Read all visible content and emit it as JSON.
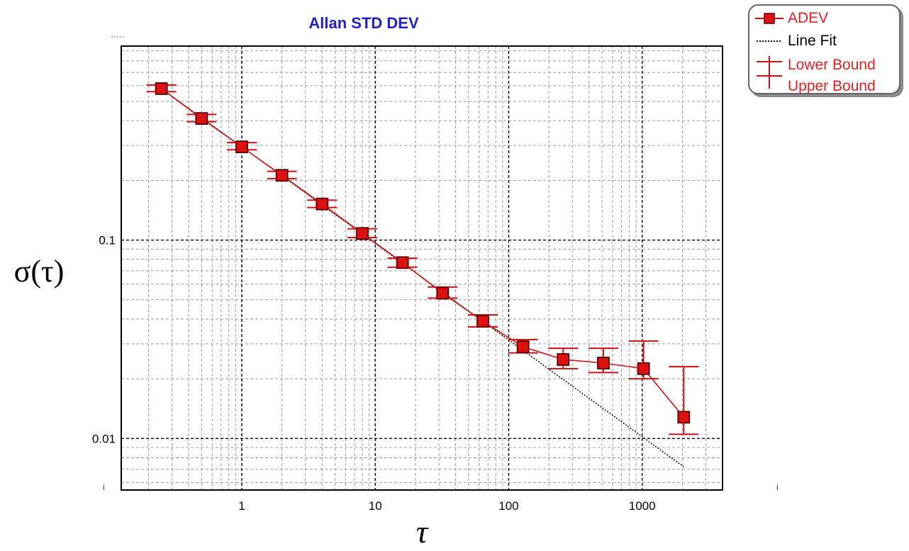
{
  "chart_data": {
    "type": "scatter",
    "title": "Allan STD DEV",
    "xlabel": "τ",
    "ylabel": "σ(τ)",
    "x_scale": "log",
    "y_scale": "log",
    "xlim": [
      0.125,
      4000
    ],
    "ylim": [
      0.0055,
      0.95
    ],
    "x_tick_labels": [
      "1",
      "10",
      "100",
      "1000"
    ],
    "y_tick_labels": [
      "0.01",
      "0.1"
    ],
    "grid": true,
    "legend_position": "top-right, outside plot",
    "series": [
      {
        "name": "ADEV",
        "color": "#dd1111",
        "x": [
          0.25,
          0.5,
          1,
          2,
          4,
          8,
          16,
          32,
          64,
          128,
          256,
          512,
          1024,
          2048
        ],
        "y": [
          0.58,
          0.41,
          0.295,
          0.212,
          0.152,
          0.108,
          0.077,
          0.054,
          0.039,
          0.029,
          0.025,
          0.024,
          0.0225,
          0.0128
        ],
        "lower": [
          0.56,
          0.395,
          0.285,
          0.204,
          0.146,
          0.103,
          0.073,
          0.051,
          0.0365,
          0.027,
          0.0225,
          0.0215,
          0.02,
          0.0105
        ],
        "upper": [
          0.605,
          0.43,
          0.31,
          0.222,
          0.159,
          0.114,
          0.081,
          0.058,
          0.042,
          0.0315,
          0.0285,
          0.0285,
          0.031,
          0.023
        ]
      },
      {
        "name": "Line Fit",
        "color": "#000000",
        "x": [
          0.25,
          2048
        ],
        "y": [
          0.58,
          0.0072
        ]
      }
    ]
  },
  "legend": {
    "adev_label": "ADEV",
    "linefit_label": "Line Fit",
    "lower_label": "Lower Bound",
    "upper_label": "Upper Bound"
  },
  "colors": {
    "title": "#2222cc",
    "series": "#dd1111",
    "marker_edge": "#6b0000",
    "legend_text": "#dd2222"
  }
}
